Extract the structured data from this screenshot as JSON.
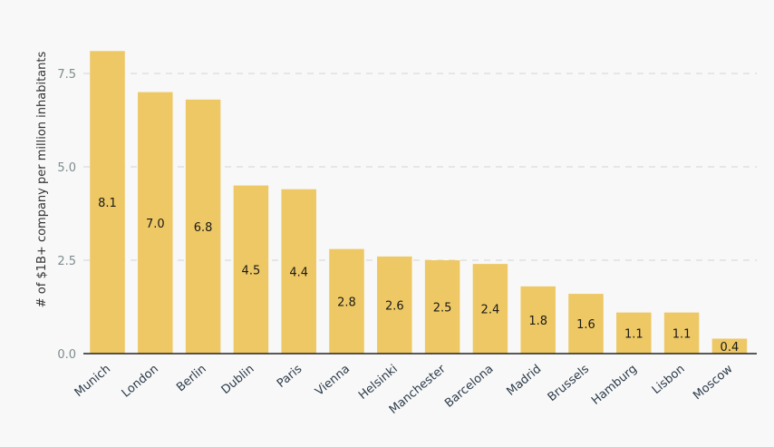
{
  "chart_data": {
    "type": "bar",
    "categories": [
      "Munich",
      "London",
      "Berlin",
      "Dublin",
      "Paris",
      "Vienna",
      "Helsinki",
      "Manchester",
      "Barcelona",
      "Madrid",
      "Brussels",
      "Hamburg",
      "Lisbon",
      "Moscow"
    ],
    "values": [
      8.1,
      7.0,
      6.8,
      4.5,
      4.4,
      2.8,
      2.6,
      2.5,
      2.4,
      1.8,
      1.6,
      1.1,
      1.1,
      0.4
    ],
    "data_labels": [
      "8.1",
      "7.0",
      "6.8",
      "4.5",
      "4.4",
      "2.8",
      "2.6",
      "2.5",
      "2.4",
      "1.8",
      "1.6",
      "1.1",
      "1.1",
      "0.4"
    ],
    "title": "",
    "xlabel": "",
    "ylabel": "# of $1B+ company per million inhabitants",
    "ylim": [
      0,
      8.3
    ],
    "yticks": [
      0,
      2.5,
      5,
      7.5
    ],
    "ytick_labels": [
      "0.0",
      "2.5",
      "5.0",
      "7.5"
    ],
    "grid": true,
    "legend": "none",
    "colors": {
      "bar": "#eec864",
      "background": "#f8f8f8",
      "grid": "#dcdcdc",
      "baseline": "#222222",
      "tick_text": "#7f8c8d",
      "category_text": "#2b3a4a"
    }
  }
}
